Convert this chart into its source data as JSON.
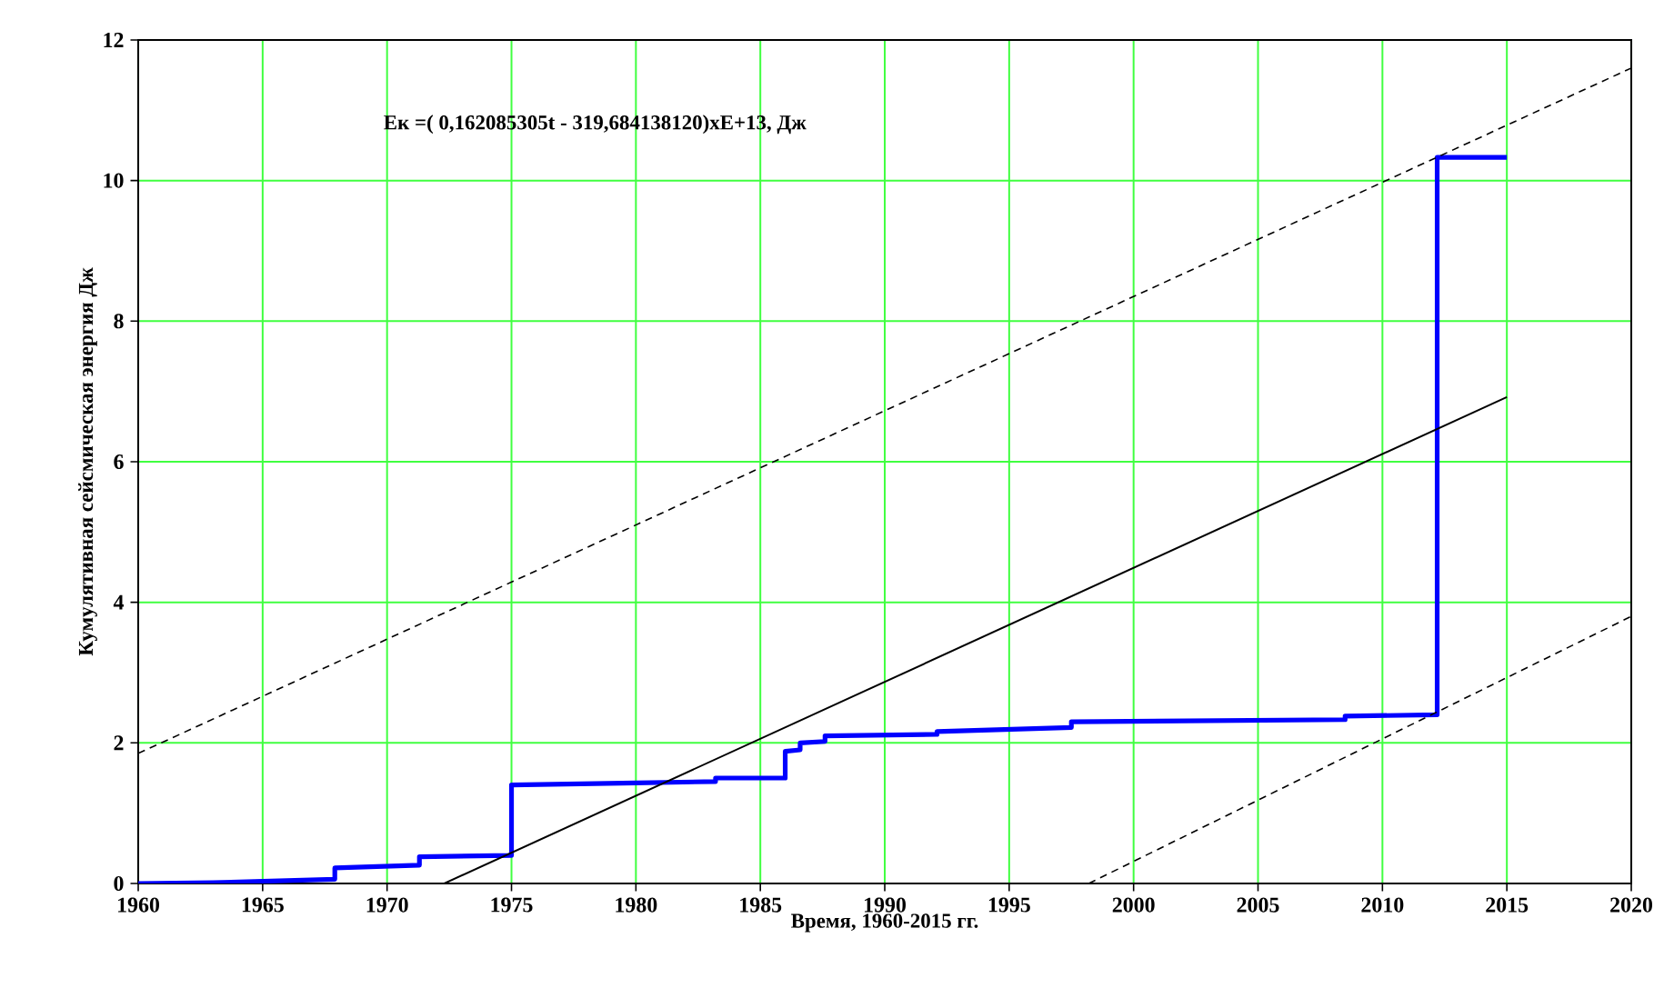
{
  "chart_data": {
    "type": "line",
    "xlabel": "Время, 1960-2015 гг.",
    "ylabel": "Кумулятивная сейсмическая энергия Дж",
    "annotations": [
      "Eк =( 0,162085305t - 319,684138120)xE+13, Дж"
    ],
    "xlim": [
      1960,
      2020
    ],
    "xticks": [
      1960,
      1965,
      1970,
      1975,
      1980,
      1985,
      1990,
      1995,
      2000,
      2005,
      2010,
      2015,
      2020
    ],
    "ylim": [
      0,
      12
    ],
    "yticks": [
      0,
      2,
      4,
      6,
      8,
      10,
      12
    ],
    "grid": true,
    "marker": "none",
    "series": [
      {
        "color": "#0000ff",
        "line_style": "solid",
        "x": [
          1960,
          1963,
          1965,
          1967.9,
          1967.9,
          1971.3,
          1971.3,
          1975,
          1975,
          1980,
          1983.2,
          1983.2,
          1986,
          1986,
          1986.6,
          1986.6,
          1987.6,
          1987.6,
          1992.1,
          1992.1,
          1997.5,
          1997.5,
          2008.5,
          2008.5,
          2012.2,
          2012.2,
          2015
        ],
        "values": [
          0,
          0.01,
          0.03,
          0.06,
          0.22,
          0.26,
          0.38,
          0.4,
          1.4,
          1.43,
          1.45,
          1.5,
          1.5,
          1.88,
          1.9,
          2.0,
          2.02,
          2.1,
          2.12,
          2.16,
          2.22,
          2.3,
          2.33,
          2.38,
          2.4,
          10.33,
          10.33
        ]
      },
      {
        "color": "#000000",
        "line_style": "solid",
        "x": [
          1972.3,
          2015
        ],
        "values": [
          0,
          6.92
        ]
      },
      {
        "color": "#000000",
        "line_style": "dashed",
        "x": [
          1960,
          2020
        ],
        "values": [
          1.85,
          11.6
        ]
      },
      {
        "color": "#000000",
        "line_style": "dashed",
        "x": [
          1998.2,
          2020
        ],
        "values": [
          0,
          3.8
        ]
      }
    ]
  }
}
